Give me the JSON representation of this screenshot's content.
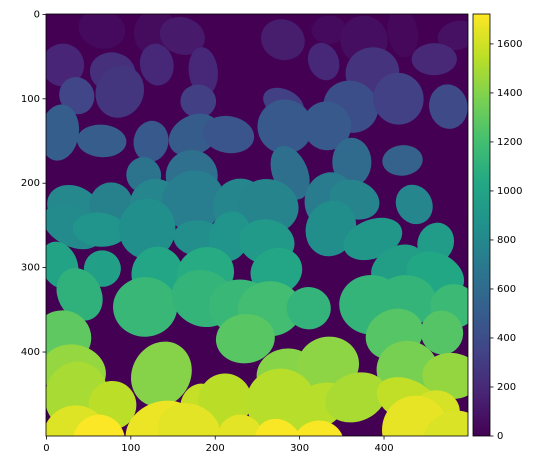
{
  "chart_data": {
    "type": "image",
    "colormap": "viridis",
    "xlim": [
      -0.5,
      499.5
    ],
    "ylim": [
      499.5,
      -0.5
    ],
    "xticks": [
      0,
      100,
      200,
      300,
      400
    ],
    "yticks": [
      0,
      100,
      200,
      300,
      400
    ],
    "colorbar": {
      "clim": [
        0,
        1722
      ],
      "ticks": [
        0,
        200,
        400,
        600,
        800,
        1000,
        1200,
        1400,
        1600
      ]
    }
  }
}
